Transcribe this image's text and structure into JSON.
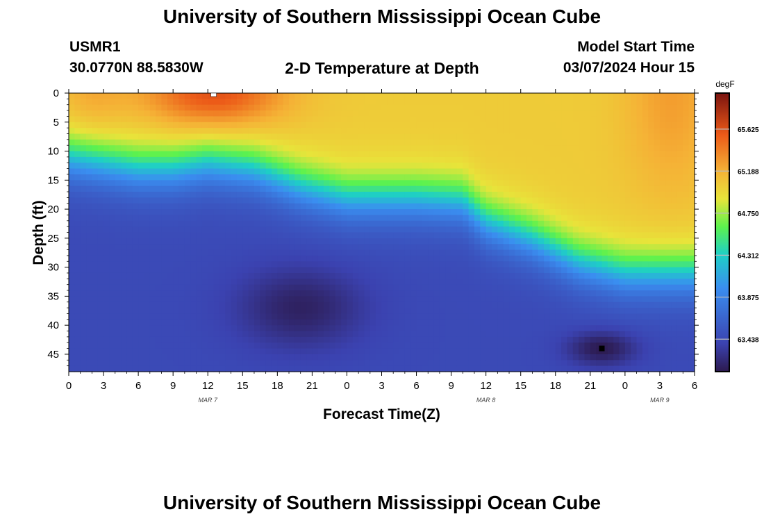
{
  "titles": {
    "main": "University of Southern Mississippi Ocean Cube",
    "bottom": "University of Southern Mississippi Ocean Cube"
  },
  "header": {
    "station": "USMR1",
    "coords": "30.0770N  88.5830W",
    "plot_title": "2-D Temperature at Depth",
    "model_start_label": "Model Start Time",
    "model_start_value": "03/07/2024 Hour 15"
  },
  "chart_data": {
    "type": "heatmap",
    "title": "2-D Temperature at Depth",
    "xlabel": "Forecast Time(Z)",
    "ylabel": "Depth (ft)",
    "x_ticks": [
      "0",
      "3",
      "6",
      "9",
      "12",
      "15",
      "18",
      "21",
      "0",
      "3",
      "6",
      "9",
      "12",
      "15",
      "18",
      "21",
      "0",
      "3",
      "6"
    ],
    "x_range_hours": [
      0,
      54
    ],
    "date_labels": [
      {
        "text": "MAR 7",
        "hour": 12
      },
      {
        "text": "MAR 8",
        "hour": 36
      },
      {
        "text": "MAR 9",
        "hour": 51
      }
    ],
    "y_ticks": [
      0,
      5,
      10,
      15,
      20,
      25,
      30,
      35,
      40,
      45
    ],
    "y_range_ft": [
      0,
      48
    ],
    "colorbar": {
      "unit": "degF",
      "min": 63.1,
      "max": 66.0,
      "ticks": [
        "65.625",
        "65.188",
        "64.750",
        "64.312",
        "63.875",
        "63.438"
      ]
    },
    "thermocline_depth_ft": {
      "hours": [
        0,
        6,
        9,
        12,
        16,
        20,
        24,
        30,
        34,
        36,
        40,
        44,
        48,
        54
      ],
      "depth": [
        11,
        13,
        13,
        12,
        13,
        16,
        18,
        18,
        18.5,
        22,
        25,
        29,
        31,
        31
      ]
    },
    "markers": [
      {
        "label": "max",
        "hour": 12.5,
        "depth_ft": 0.2,
        "color": "#ffffff"
      },
      {
        "label": "min",
        "hour": 46,
        "depth_ft": 44,
        "color": "#000000"
      }
    ]
  }
}
